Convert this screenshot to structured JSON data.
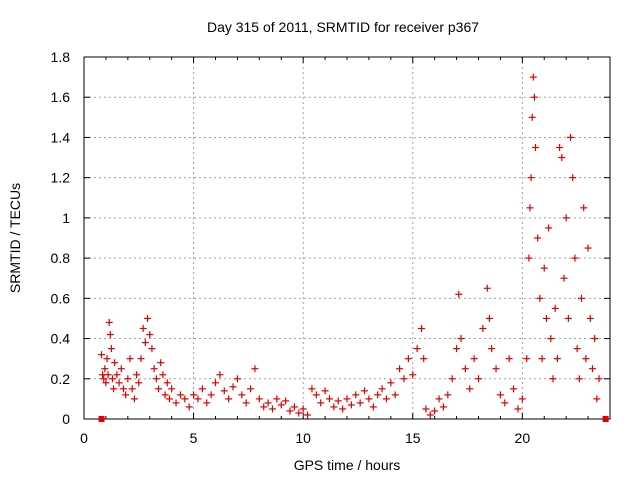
{
  "chart_data": {
    "type": "scatter",
    "title": "Day 315 of 2011, SRMTID for receiver p367",
    "xlabel": "GPS time / hours",
    "ylabel": "SRMTID / TECUs",
    "xlim": [
      0,
      24
    ],
    "ylim": [
      0,
      1.8
    ],
    "x_ticks": [
      "0",
      "5",
      "10",
      "15",
      "20"
    ],
    "y_ticks": [
      "0",
      "0.2",
      "0.4",
      "0.6",
      "0.8",
      "1",
      "1.2",
      "1.4",
      "1.6",
      "1.8"
    ],
    "grid": true,
    "marker": "plus",
    "color": "#e00000",
    "series": [
      {
        "name": "SRMTID",
        "points": [
          [
            0.8,
            0.32
          ],
          [
            0.85,
            0.22
          ],
          [
            0.9,
            0.2
          ],
          [
            0.95,
            0.25
          ],
          [
            1.0,
            0.18
          ],
          [
            1.05,
            0.3
          ],
          [
            1.1,
            0.22
          ],
          [
            1.15,
            0.48
          ],
          [
            1.2,
            0.42
          ],
          [
            1.25,
            0.35
          ],
          [
            1.3,
            0.2
          ],
          [
            1.35,
            0.15
          ],
          [
            1.4,
            0.28
          ],
          [
            1.5,
            0.22
          ],
          [
            1.6,
            0.18
          ],
          [
            1.7,
            0.25
          ],
          [
            1.8,
            0.15
          ],
          [
            1.9,
            0.12
          ],
          [
            2.0,
            0.2
          ],
          [
            2.1,
            0.3
          ],
          [
            2.2,
            0.15
          ],
          [
            2.3,
            0.1
          ],
          [
            2.4,
            0.22
          ],
          [
            2.5,
            0.18
          ],
          [
            2.6,
            0.3
          ],
          [
            2.7,
            0.45
          ],
          [
            2.8,
            0.38
          ],
          [
            2.9,
            0.5
          ],
          [
            3.0,
            0.42
          ],
          [
            3.1,
            0.35
          ],
          [
            3.2,
            0.25
          ],
          [
            3.3,
            0.2
          ],
          [
            3.4,
            0.15
          ],
          [
            3.5,
            0.28
          ],
          [
            3.6,
            0.22
          ],
          [
            3.7,
            0.12
          ],
          [
            3.8,
            0.18
          ],
          [
            3.9,
            0.1
          ],
          [
            4.0,
            0.15
          ],
          [
            4.2,
            0.08
          ],
          [
            4.4,
            0.12
          ],
          [
            4.6,
            0.1
          ],
          [
            4.8,
            0.06
          ],
          [
            5.0,
            0.12
          ],
          [
            5.2,
            0.1
          ],
          [
            5.4,
            0.15
          ],
          [
            5.6,
            0.08
          ],
          [
            5.8,
            0.12
          ],
          [
            6.0,
            0.18
          ],
          [
            6.2,
            0.22
          ],
          [
            6.4,
            0.14
          ],
          [
            6.6,
            0.1
          ],
          [
            6.8,
            0.16
          ],
          [
            7.0,
            0.2
          ],
          [
            7.2,
            0.12
          ],
          [
            7.4,
            0.08
          ],
          [
            7.6,
            0.15
          ],
          [
            7.8,
            0.25
          ],
          [
            8.0,
            0.1
          ],
          [
            8.2,
            0.06
          ],
          [
            8.4,
            0.08
          ],
          [
            8.6,
            0.05
          ],
          [
            8.8,
            0.1
          ],
          [
            9.0,
            0.07
          ],
          [
            9.2,
            0.09
          ],
          [
            9.4,
            0.04
          ],
          [
            9.6,
            0.06
          ],
          [
            9.8,
            0.03
          ],
          [
            10.0,
            0.05
          ],
          [
            10.2,
            0.02
          ],
          [
            10.4,
            0.15
          ],
          [
            10.6,
            0.12
          ],
          [
            10.8,
            0.08
          ],
          [
            11.0,
            0.14
          ],
          [
            11.2,
            0.1
          ],
          [
            11.4,
            0.06
          ],
          [
            11.6,
            0.09
          ],
          [
            11.8,
            0.05
          ],
          [
            12.0,
            0.1
          ],
          [
            12.2,
            0.07
          ],
          [
            12.4,
            0.12
          ],
          [
            12.6,
            0.08
          ],
          [
            12.8,
            0.14
          ],
          [
            13.0,
            0.1
          ],
          [
            13.2,
            0.06
          ],
          [
            13.4,
            0.12
          ],
          [
            13.6,
            0.15
          ],
          [
            13.8,
            0.1
          ],
          [
            14.0,
            0.18
          ],
          [
            14.2,
            0.12
          ],
          [
            14.4,
            0.25
          ],
          [
            14.6,
            0.2
          ],
          [
            14.8,
            0.3
          ],
          [
            15.0,
            0.22
          ],
          [
            15.2,
            0.35
          ],
          [
            15.4,
            0.45
          ],
          [
            15.5,
            0.3
          ],
          [
            15.6,
            0.05
          ],
          [
            15.8,
            0.02
          ],
          [
            16.0,
            0.04
          ],
          [
            16.2,
            0.1
          ],
          [
            16.4,
            0.06
          ],
          [
            16.6,
            0.12
          ],
          [
            16.8,
            0.2
          ],
          [
            17.0,
            0.35
          ],
          [
            17.1,
            0.62
          ],
          [
            17.2,
            0.4
          ],
          [
            17.4,
            0.25
          ],
          [
            17.6,
            0.15
          ],
          [
            17.8,
            0.3
          ],
          [
            18.0,
            0.2
          ],
          [
            18.2,
            0.45
          ],
          [
            18.4,
            0.65
          ],
          [
            18.5,
            0.5
          ],
          [
            18.6,
            0.35
          ],
          [
            18.8,
            0.25
          ],
          [
            19.0,
            0.12
          ],
          [
            19.2,
            0.08
          ],
          [
            19.4,
            0.3
          ],
          [
            19.6,
            0.15
          ],
          [
            19.8,
            0.05
          ],
          [
            20.0,
            0.1
          ],
          [
            20.2,
            0.3
          ],
          [
            20.3,
            0.8
          ],
          [
            20.35,
            1.05
          ],
          [
            20.4,
            1.2
          ],
          [
            20.45,
            1.5
          ],
          [
            20.5,
            1.7
          ],
          [
            20.55,
            1.6
          ],
          [
            20.6,
            1.35
          ],
          [
            20.7,
            0.9
          ],
          [
            20.8,
            0.6
          ],
          [
            20.9,
            0.3
          ],
          [
            21.0,
            0.75
          ],
          [
            21.1,
            0.5
          ],
          [
            21.2,
            0.95
          ],
          [
            21.3,
            0.4
          ],
          [
            21.4,
            0.2
          ],
          [
            21.5,
            0.55
          ],
          [
            21.6,
            0.3
          ],
          [
            21.7,
            1.35
          ],
          [
            21.8,
            1.3
          ],
          [
            21.9,
            0.7
          ],
          [
            22.0,
            1.0
          ],
          [
            22.1,
            0.5
          ],
          [
            22.2,
            1.4
          ],
          [
            22.3,
            1.2
          ],
          [
            22.4,
            0.8
          ],
          [
            22.5,
            0.35
          ],
          [
            22.6,
            0.2
          ],
          [
            22.7,
            0.6
          ],
          [
            22.8,
            1.05
          ],
          [
            22.9,
            0.3
          ],
          [
            23.0,
            0.85
          ],
          [
            23.1,
            0.5
          ],
          [
            23.2,
            0.25
          ],
          [
            23.3,
            0.4
          ],
          [
            23.4,
            0.1
          ],
          [
            23.5,
            0.2
          ]
        ]
      }
    ],
    "axis_markers": [
      {
        "x": 0.8,
        "y": 0
      },
      {
        "x": 23.8,
        "y": 0
      }
    ]
  }
}
